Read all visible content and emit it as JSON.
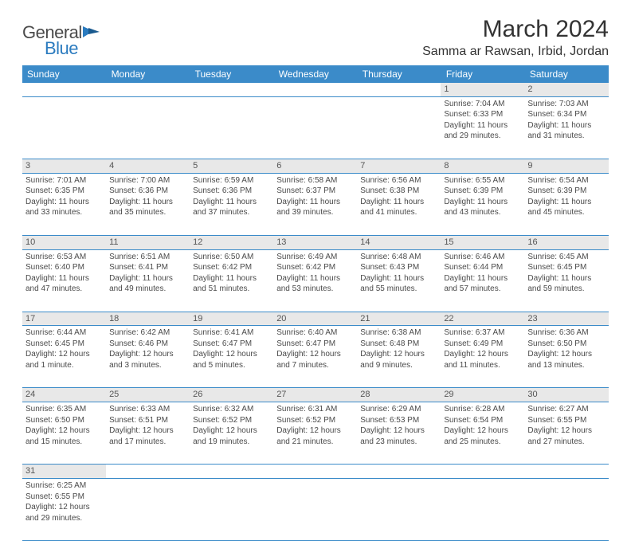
{
  "logo": {
    "text1": "General",
    "text2": "Blue"
  },
  "title": "March 2024",
  "location": "Samma ar Rawsan, Irbid, Jordan",
  "colors": {
    "header_bg": "#3b8bc9",
    "header_text": "#ffffff",
    "daynum_bg": "#e8e8e8",
    "border": "#3b8bc9",
    "body_text": "#4a4a4a",
    "logo_gray": "#4a4a4a",
    "logo_blue": "#2b7bbf"
  },
  "day_headers": [
    "Sunday",
    "Monday",
    "Tuesday",
    "Wednesday",
    "Thursday",
    "Friday",
    "Saturday"
  ],
  "weeks": [
    [
      null,
      null,
      null,
      null,
      null,
      {
        "n": "1",
        "sunrise": "7:04 AM",
        "sunset": "6:33 PM",
        "dh": "11",
        "dm": "29"
      },
      {
        "n": "2",
        "sunrise": "7:03 AM",
        "sunset": "6:34 PM",
        "dh": "11",
        "dm": "31"
      }
    ],
    [
      {
        "n": "3",
        "sunrise": "7:01 AM",
        "sunset": "6:35 PM",
        "dh": "11",
        "dm": "33"
      },
      {
        "n": "4",
        "sunrise": "7:00 AM",
        "sunset": "6:36 PM",
        "dh": "11",
        "dm": "35"
      },
      {
        "n": "5",
        "sunrise": "6:59 AM",
        "sunset": "6:36 PM",
        "dh": "11",
        "dm": "37"
      },
      {
        "n": "6",
        "sunrise": "6:58 AM",
        "sunset": "6:37 PM",
        "dh": "11",
        "dm": "39"
      },
      {
        "n": "7",
        "sunrise": "6:56 AM",
        "sunset": "6:38 PM",
        "dh": "11",
        "dm": "41"
      },
      {
        "n": "8",
        "sunrise": "6:55 AM",
        "sunset": "6:39 PM",
        "dh": "11",
        "dm": "43"
      },
      {
        "n": "9",
        "sunrise": "6:54 AM",
        "sunset": "6:39 PM",
        "dh": "11",
        "dm": "45"
      }
    ],
    [
      {
        "n": "10",
        "sunrise": "6:53 AM",
        "sunset": "6:40 PM",
        "dh": "11",
        "dm": "47"
      },
      {
        "n": "11",
        "sunrise": "6:51 AM",
        "sunset": "6:41 PM",
        "dh": "11",
        "dm": "49"
      },
      {
        "n": "12",
        "sunrise": "6:50 AM",
        "sunset": "6:42 PM",
        "dh": "11",
        "dm": "51"
      },
      {
        "n": "13",
        "sunrise": "6:49 AM",
        "sunset": "6:42 PM",
        "dh": "11",
        "dm": "53"
      },
      {
        "n": "14",
        "sunrise": "6:48 AM",
        "sunset": "6:43 PM",
        "dh": "11",
        "dm": "55"
      },
      {
        "n": "15",
        "sunrise": "6:46 AM",
        "sunset": "6:44 PM",
        "dh": "11",
        "dm": "57"
      },
      {
        "n": "16",
        "sunrise": "6:45 AM",
        "sunset": "6:45 PM",
        "dh": "11",
        "dm": "59"
      }
    ],
    [
      {
        "n": "17",
        "sunrise": "6:44 AM",
        "sunset": "6:45 PM",
        "dh": "12",
        "dm": "1",
        "singular": true
      },
      {
        "n": "18",
        "sunrise": "6:42 AM",
        "sunset": "6:46 PM",
        "dh": "12",
        "dm": "3"
      },
      {
        "n": "19",
        "sunrise": "6:41 AM",
        "sunset": "6:47 PM",
        "dh": "12",
        "dm": "5"
      },
      {
        "n": "20",
        "sunrise": "6:40 AM",
        "sunset": "6:47 PM",
        "dh": "12",
        "dm": "7"
      },
      {
        "n": "21",
        "sunrise": "6:38 AM",
        "sunset": "6:48 PM",
        "dh": "12",
        "dm": "9"
      },
      {
        "n": "22",
        "sunrise": "6:37 AM",
        "sunset": "6:49 PM",
        "dh": "12",
        "dm": "11"
      },
      {
        "n": "23",
        "sunrise": "6:36 AM",
        "sunset": "6:50 PM",
        "dh": "12",
        "dm": "13"
      }
    ],
    [
      {
        "n": "24",
        "sunrise": "6:35 AM",
        "sunset": "6:50 PM",
        "dh": "12",
        "dm": "15"
      },
      {
        "n": "25",
        "sunrise": "6:33 AM",
        "sunset": "6:51 PM",
        "dh": "12",
        "dm": "17"
      },
      {
        "n": "26",
        "sunrise": "6:32 AM",
        "sunset": "6:52 PM",
        "dh": "12",
        "dm": "19"
      },
      {
        "n": "27",
        "sunrise": "6:31 AM",
        "sunset": "6:52 PM",
        "dh": "12",
        "dm": "21"
      },
      {
        "n": "28",
        "sunrise": "6:29 AM",
        "sunset": "6:53 PM",
        "dh": "12",
        "dm": "23"
      },
      {
        "n": "29",
        "sunrise": "6:28 AM",
        "sunset": "6:54 PM",
        "dh": "12",
        "dm": "25"
      },
      {
        "n": "30",
        "sunrise": "6:27 AM",
        "sunset": "6:55 PM",
        "dh": "12",
        "dm": "27"
      }
    ],
    [
      {
        "n": "31",
        "sunrise": "6:25 AM",
        "sunset": "6:55 PM",
        "dh": "12",
        "dm": "29"
      },
      null,
      null,
      null,
      null,
      null,
      null
    ]
  ]
}
